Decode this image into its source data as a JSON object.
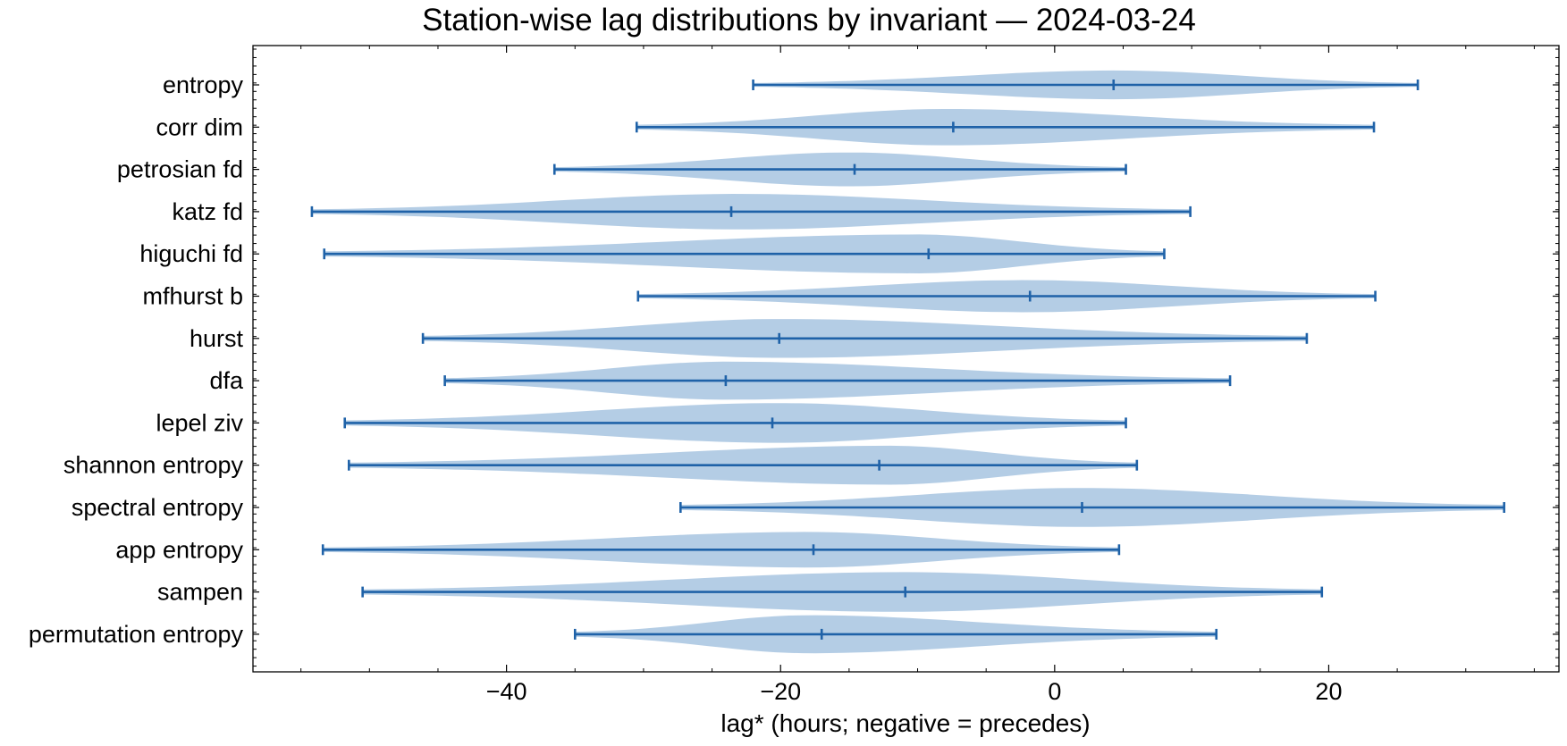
{
  "chart_data": {
    "type": "violin",
    "orientation": "horizontal",
    "title": "Station-wise lag distributions by invariant — 2024-03-24",
    "xlabel": "lag* (hours; negative = precedes)",
    "ylabel": "",
    "xlim": [
      -58.5,
      36.8
    ],
    "xticks": [
      -40,
      -20,
      0,
      20
    ],
    "xtick_labels": [
      "−40",
      "−20",
      "0",
      "20"
    ],
    "grid": false,
    "colors": {
      "body": "#a7c4e0",
      "line": "#1f62a8"
    },
    "categories": [
      "entropy",
      "corr dim",
      "petrosian fd",
      "katz fd",
      "higuchi fd",
      "mfhurst b",
      "hurst",
      "dfa",
      "lepel ziv",
      "shannon entropy",
      "spectral entropy",
      "app entropy",
      "sampen",
      "permutation entropy"
    ],
    "series": [
      {
        "category": "entropy",
        "min": -22.0,
        "max": 26.5,
        "median": 4.3,
        "mode": 4.5,
        "maxWidth": 0.34
      },
      {
        "category": "corr dim",
        "min": -30.5,
        "max": 23.3,
        "median": -7.4,
        "mode": -8.0,
        "maxWidth": 0.43
      },
      {
        "category": "petrosian fd",
        "min": -36.5,
        "max": 5.2,
        "median": -14.6,
        "mode": -15.0,
        "maxWidth": 0.4
      },
      {
        "category": "katz fd",
        "min": -54.2,
        "max": 9.9,
        "median": -23.6,
        "mode": -23.0,
        "maxWidth": 0.42
      },
      {
        "category": "higuchi fd",
        "min": -53.3,
        "max": 8.0,
        "median": -9.2,
        "mode": -10.0,
        "maxWidth": 0.46
      },
      {
        "category": "mfhurst b",
        "min": -30.4,
        "max": 23.4,
        "median": -1.8,
        "mode": -2.0,
        "maxWidth": 0.38
      },
      {
        "category": "hurst",
        "min": -46.1,
        "max": 18.4,
        "median": -20.1,
        "mode": -20.0,
        "maxWidth": 0.46
      },
      {
        "category": "dfa",
        "min": -44.5,
        "max": 12.8,
        "median": -24.0,
        "mode": -24.0,
        "maxWidth": 0.45
      },
      {
        "category": "lepel ziv",
        "min": -51.8,
        "max": 5.2,
        "median": -20.6,
        "mode": -20.0,
        "maxWidth": 0.47
      },
      {
        "category": "shannon entropy",
        "min": -51.5,
        "max": 6.0,
        "median": -12.8,
        "mode": -12.0,
        "maxWidth": 0.46
      },
      {
        "category": "spectral entropy",
        "min": -27.3,
        "max": 32.8,
        "median": 2.0,
        "mode": 2.0,
        "maxWidth": 0.46
      },
      {
        "category": "app entropy",
        "min": -53.4,
        "max": 4.7,
        "median": -17.6,
        "mode": -18.0,
        "maxWidth": 0.42
      },
      {
        "category": "sampen",
        "min": -50.5,
        "max": 19.5,
        "median": -10.9,
        "mode": -11.0,
        "maxWidth": 0.47
      },
      {
        "category": "permutation entropy",
        "min": -35.0,
        "max": 11.8,
        "median": -17.0,
        "mode": -18.0,
        "maxWidth": 0.45
      }
    ]
  }
}
